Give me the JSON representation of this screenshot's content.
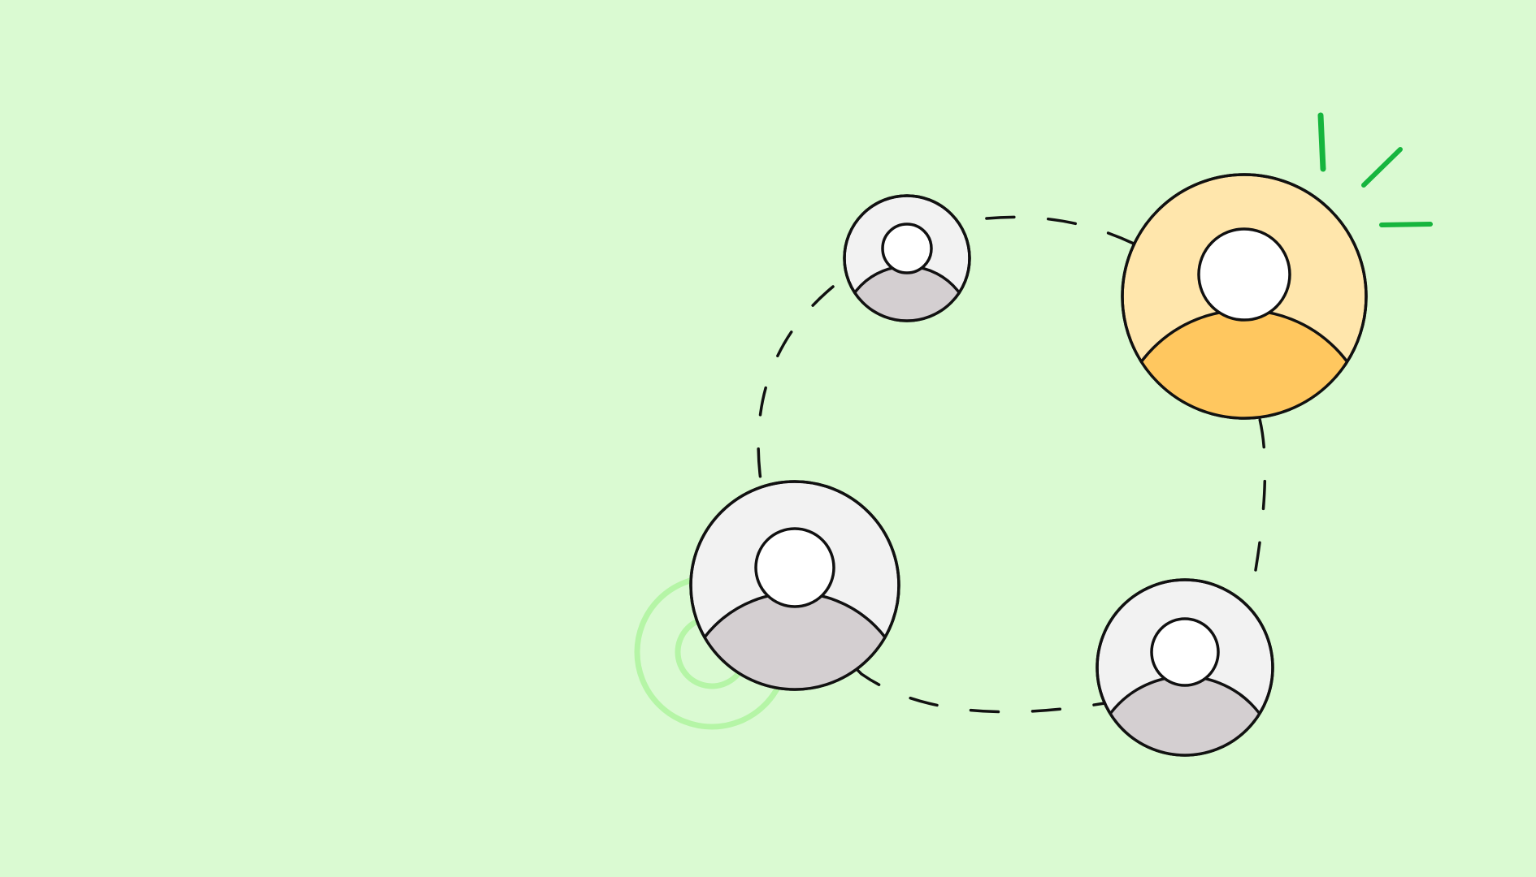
{
  "colors": {
    "background": "#dafad2",
    "outline": "#111111",
    "avatar_default_bg": "#f2f2f2",
    "avatar_default_body": "#d4cfd1",
    "avatar_head": "#ffffff",
    "avatar_highlight_bg": "#ffe6ac",
    "avatar_highlight_body": "#ffc75f",
    "spark": "#16b53e",
    "ripple": "#b5f5a6"
  },
  "avatars": [
    {
      "name": "avatar-top-left",
      "highlighted": false
    },
    {
      "name": "avatar-featured",
      "highlighted": true
    },
    {
      "name": "avatar-bottom-left",
      "highlighted": false,
      "ripple": true
    },
    {
      "name": "avatar-bottom-right",
      "highlighted": false
    }
  ],
  "connection_style": "dashed-loop",
  "icons": [
    "user-icon",
    "spark-icon",
    "ripple-icon"
  ]
}
